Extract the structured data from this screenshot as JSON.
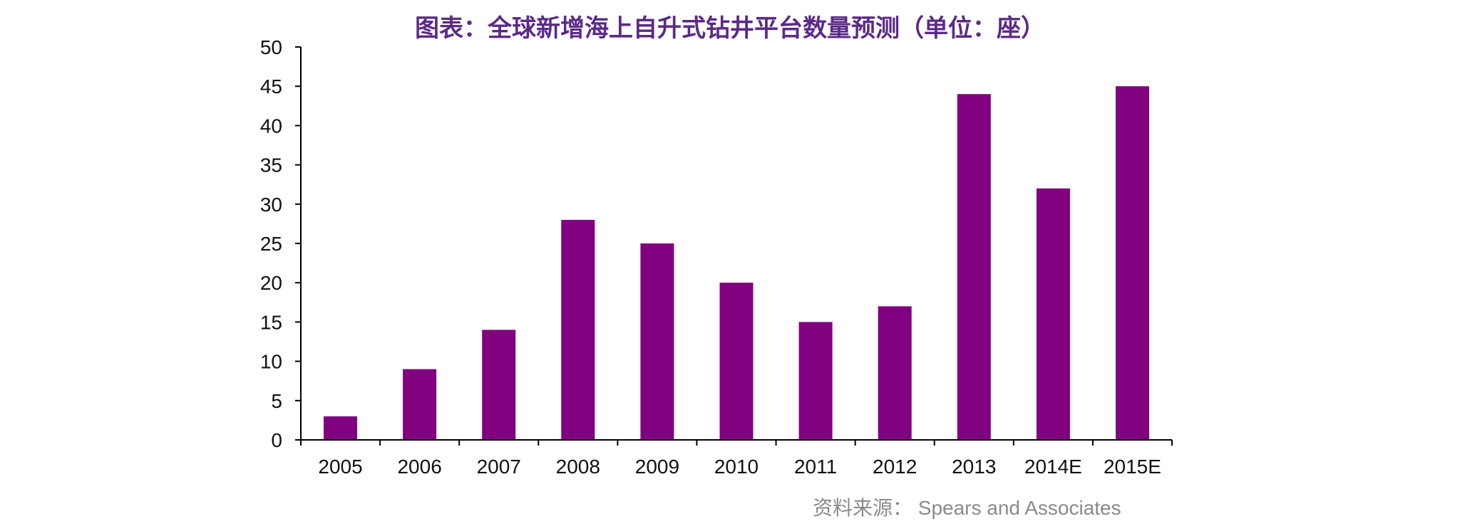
{
  "chart_data": {
    "type": "bar",
    "title": "图表：全球新增海上自升式钻井平台数量预测（单位：座）",
    "categories": [
      "2005",
      "2006",
      "2007",
      "2008",
      "2009",
      "2010",
      "2011",
      "2012",
      "2013",
      "2014E",
      "2015E"
    ],
    "values": [
      3,
      9,
      14,
      28,
      25,
      20,
      15,
      17,
      44,
      32,
      45
    ],
    "ylim": [
      0,
      50
    ],
    "yticks": [
      0,
      5,
      10,
      15,
      20,
      25,
      30,
      35,
      40,
      45,
      50
    ],
    "grid": false,
    "legend": "none",
    "bar_color": "#800080",
    "source": "资料来源： Spears and Associates"
  }
}
